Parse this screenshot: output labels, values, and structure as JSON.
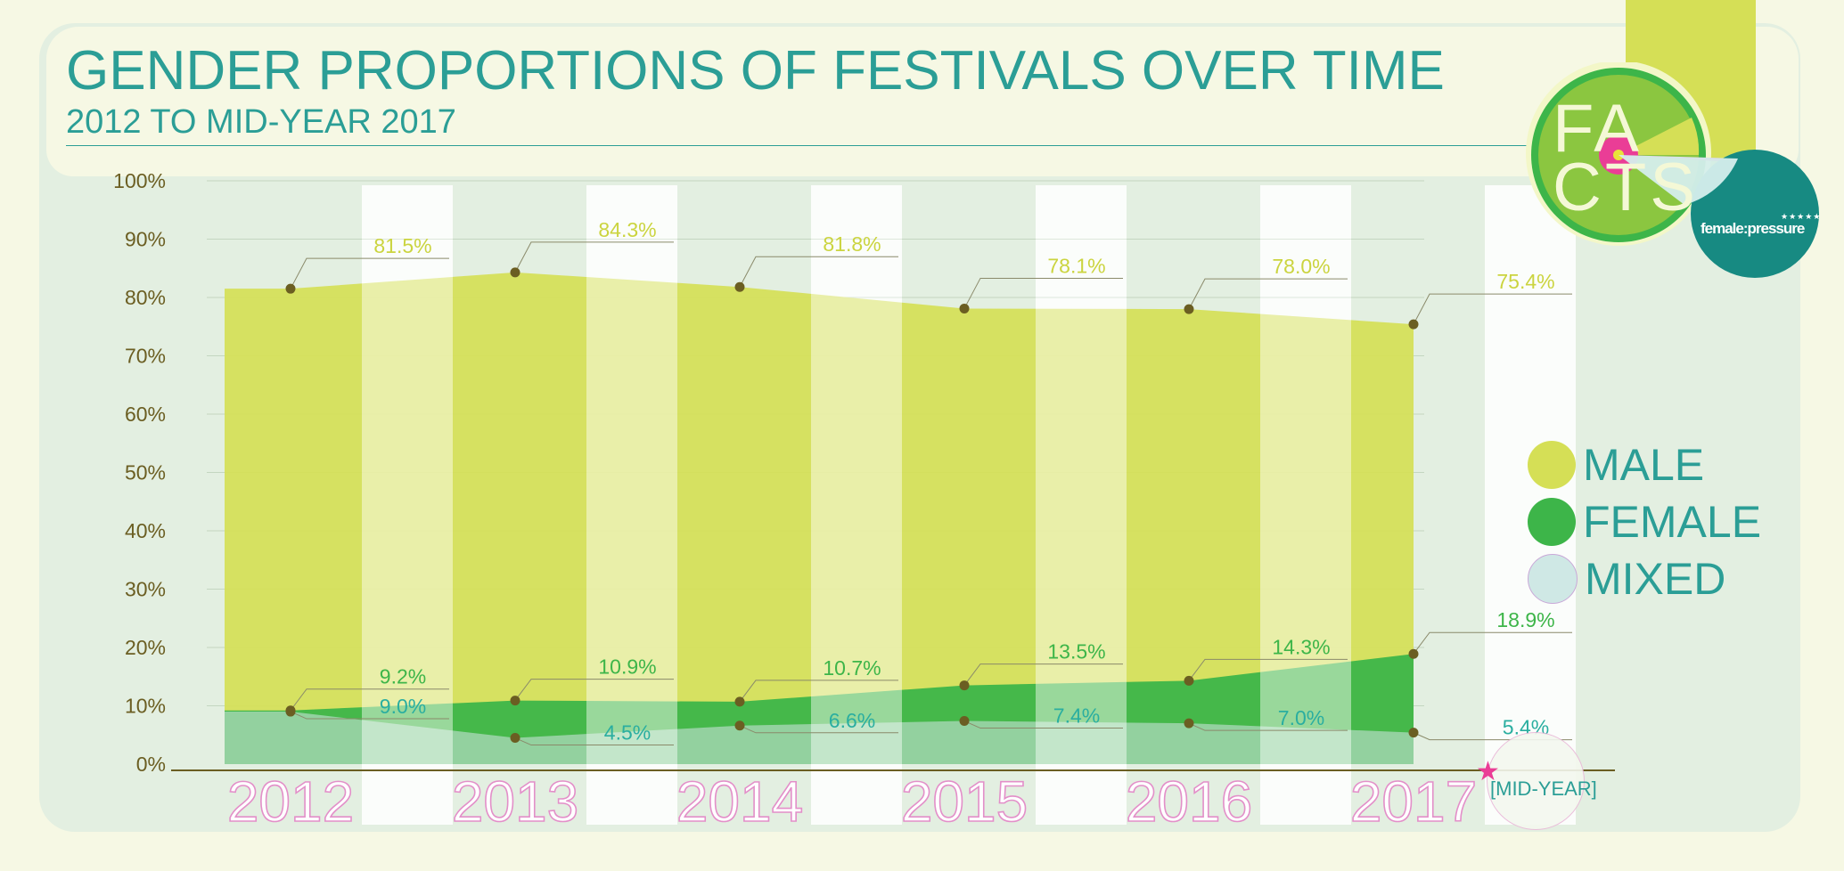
{
  "header": {
    "title": "GENDER PROPORTIONS OF FESTIVALS OVER TIME",
    "subtitle": "2012 TO MID-YEAR 2017"
  },
  "badge": {
    "facts_line1": "FA",
    "facts_line2": "CTS",
    "brand": "female:pressure",
    "brand_stars": "★★★★★"
  },
  "annotation": {
    "midyear": "[MID-YEAR]"
  },
  "legend": {
    "items": [
      {
        "label": "MALE",
        "color": "#d5df56"
      },
      {
        "label": "FEMALE",
        "color": "#3db549"
      },
      {
        "label": "MIXED",
        "color": "#cfe8e5"
      }
    ]
  },
  "colors": {
    "male": "#d5df56",
    "female": "#3db549",
    "mixed": "#9bd4a8",
    "title": "#2b9e96",
    "tick": "#6b5e22",
    "dot": "#6b5e22",
    "male_label": "#cbd43f",
    "female_label": "#3db549",
    "mixed_label": "#2aaea0"
  },
  "chart_data": {
    "type": "area",
    "title": "GENDER PROPORTIONS OF FESTIVALS OVER TIME",
    "subtitle": "2012 TO MID-YEAR 2017",
    "categories": [
      "2012",
      "2013",
      "2014",
      "2015",
      "2016",
      "2017"
    ],
    "y_ticks": [
      "0%",
      "10%",
      "20%",
      "30%",
      "40%",
      "50%",
      "60%",
      "70%",
      "80%",
      "90%",
      "100%"
    ],
    "ylim": [
      0,
      100
    ],
    "grid": true,
    "legend_position": "right",
    "series": [
      {
        "name": "MALE",
        "values": [
          81.5,
          84.3,
          81.8,
          78.1,
          78.0,
          75.4
        ],
        "labels": [
          "81.5%",
          "84.3%",
          "81.8%",
          "78.1%",
          "78.0%",
          "75.4%"
        ]
      },
      {
        "name": "FEMALE",
        "values": [
          9.2,
          10.9,
          10.7,
          13.5,
          14.3,
          18.9
        ],
        "labels": [
          "9.2%",
          "10.9%",
          "10.7%",
          "13.5%",
          "14.3%",
          "18.9%"
        ]
      },
      {
        "name": "MIXED",
        "values": [
          9.0,
          4.5,
          6.6,
          7.4,
          7.0,
          5.4
        ],
        "labels": [
          "9.0%",
          "4.5%",
          "6.6%",
          "7.4%",
          "7.0%",
          "5.4%"
        ]
      }
    ]
  }
}
